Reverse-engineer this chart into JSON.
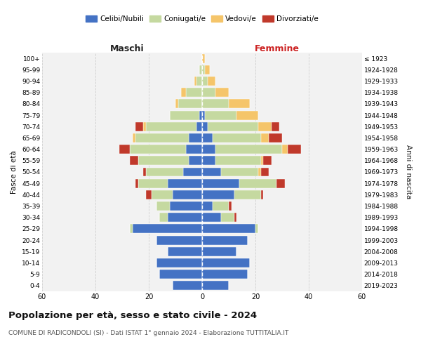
{
  "age_groups_bottom_to_top": [
    "0-4",
    "5-9",
    "10-14",
    "15-19",
    "20-24",
    "25-29",
    "30-34",
    "35-39",
    "40-44",
    "45-49",
    "50-54",
    "55-59",
    "60-64",
    "65-69",
    "70-74",
    "75-79",
    "80-84",
    "85-89",
    "90-94",
    "95-99",
    "100+"
  ],
  "birth_years_bottom_to_top": [
    "2019-2023",
    "2014-2018",
    "2009-2013",
    "2004-2008",
    "1999-2003",
    "1994-1998",
    "1989-1993",
    "1984-1988",
    "1979-1983",
    "1974-1978",
    "1969-1973",
    "1964-1968",
    "1959-1963",
    "1954-1958",
    "1949-1953",
    "1944-1948",
    "1939-1943",
    "1934-1938",
    "1929-1933",
    "1924-1928",
    "≤ 1923"
  ],
  "maschi": {
    "celibi": [
      11,
      16,
      17,
      13,
      17,
      26,
      13,
      12,
      11,
      13,
      7,
      5,
      6,
      5,
      2,
      1,
      0,
      0,
      0,
      0,
      0
    ],
    "coniugati": [
      0,
      0,
      0,
      0,
      0,
      1,
      3,
      5,
      8,
      11,
      14,
      19,
      21,
      20,
      19,
      11,
      9,
      6,
      2,
      1,
      0
    ],
    "vedovi": [
      0,
      0,
      0,
      0,
      0,
      0,
      0,
      0,
      0,
      0,
      0,
      0,
      0,
      1,
      1,
      0,
      1,
      2,
      1,
      0,
      0
    ],
    "divorziati": [
      0,
      0,
      0,
      0,
      0,
      0,
      0,
      0,
      2,
      1,
      1,
      3,
      4,
      0,
      3,
      0,
      0,
      0,
      0,
      0,
      0
    ]
  },
  "femmine": {
    "nubili": [
      10,
      17,
      18,
      13,
      17,
      20,
      7,
      4,
      12,
      14,
      7,
      5,
      5,
      4,
      2,
      1,
      0,
      0,
      0,
      0,
      0
    ],
    "coniugate": [
      0,
      0,
      0,
      0,
      0,
      1,
      5,
      6,
      10,
      14,
      14,
      17,
      25,
      18,
      19,
      12,
      10,
      5,
      2,
      1,
      0
    ],
    "vedove": [
      0,
      0,
      0,
      0,
      0,
      0,
      0,
      0,
      0,
      0,
      1,
      1,
      2,
      3,
      5,
      8,
      8,
      5,
      3,
      2,
      1
    ],
    "divorziate": [
      0,
      0,
      0,
      0,
      0,
      0,
      1,
      1,
      1,
      3,
      3,
      3,
      5,
      5,
      3,
      0,
      0,
      0,
      0,
      0,
      0
    ]
  },
  "colors": {
    "celibi": "#4472C4",
    "coniugati": "#C5D9A0",
    "vedovi": "#F5C56A",
    "divorziati": "#C0392B"
  },
  "title": "Popolazione per età, sesso e stato civile - 2024",
  "subtitle": "COMUNE DI RADICONDOLI (SI) - Dati ISTAT 1° gennaio 2024 - Elaborazione TUTTITALIA.IT",
  "label_maschi": "Maschi",
  "label_femmine": "Femmine",
  "ylabel_left": "Fasce di età",
  "ylabel_right": "Anni di nascita",
  "xlim": 60,
  "xticks": [
    60,
    40,
    20,
    0,
    20,
    40,
    60
  ],
  "legend_labels": [
    "Celibi/Nubili",
    "Coniugati/e",
    "Vedovi/e",
    "Divorziati/e"
  ],
  "bg_color": "#f2f2f2",
  "bar_edge_color": "white",
  "center_line_color": "white"
}
